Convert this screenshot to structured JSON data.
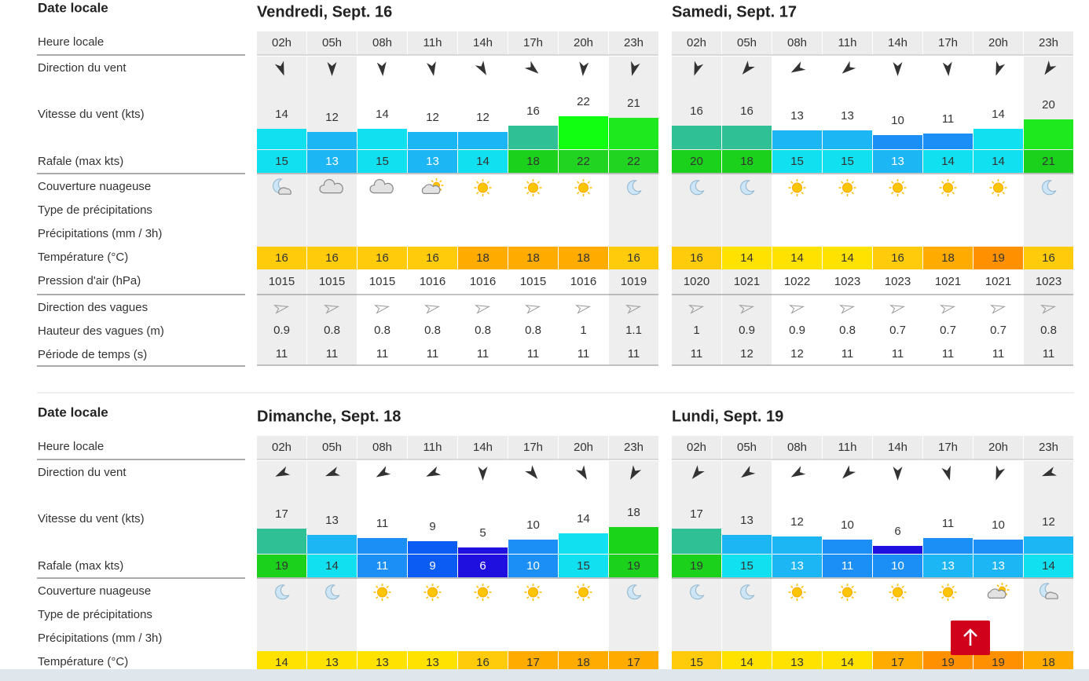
{
  "sections": [
    {
      "row_labels": [
        "Date locale",
        "Heure locale",
        "Direction du vent",
        "Vitesse du vent (kts)",
        "Rafale (max kts)",
        "Couverture nuageuse",
        "Type de précipitations",
        "Précipitations (mm / 3h)",
        "Température (°C)",
        "Pression d'air (hPa)",
        "Direction des vagues",
        "Hauteur des vagues (m)",
        "Période de temps (s)"
      ],
      "days": [
        {
          "title": "Vendredi, Sept. 16",
          "hours": [
            "02h",
            "05h",
            "08h",
            "11h",
            "14h",
            "17h",
            "20h",
            "23h"
          ],
          "wind_direction_deg": [
            160,
            180,
            175,
            170,
            150,
            130,
            185,
            195
          ],
          "wind_speed": [
            14,
            12,
            14,
            12,
            12,
            16,
            22,
            21
          ],
          "wind_colors": [
            "#10e0ef",
            "#1cb6f4",
            "#10e0ef",
            "#1cb6f4",
            "#1cb6f4",
            "#2fc096",
            "#11ff11",
            "#1ee81e"
          ],
          "gust": [
            15,
            13,
            15,
            13,
            14,
            18,
            22,
            22
          ],
          "gust_colors": [
            "#10e0ef",
            "#1cb6f4",
            "#10e0ef",
            "#1cb6f4",
            "#10e0ef",
            "#1cd11c",
            "#22d422",
            "#22d422"
          ],
          "cloud_icons": [
            "moon-cloud",
            "cloud",
            "cloud",
            "sun-cloud",
            "sun",
            "sun",
            "sun",
            "moon"
          ],
          "temperature": [
            16,
            16,
            16,
            16,
            18,
            18,
            18,
            16
          ],
          "temp_colors": [
            "#ffcb0a",
            "#ffcb0a",
            "#ffcb0a",
            "#ffcb0a",
            "#ffab00",
            "#ffab00",
            "#ffab00",
            "#ffcb0a"
          ],
          "pressure": [
            1015,
            1015,
            1015,
            1016,
            1016,
            1015,
            1016,
            1019
          ],
          "wave_height": [
            0.9,
            0.8,
            0.8,
            0.8,
            0.8,
            0.8,
            1,
            1.1
          ],
          "wave_period": [
            11,
            11,
            11,
            11,
            11,
            11,
            11,
            11
          ]
        },
        {
          "title": "Samedi, Sept. 17",
          "hours": [
            "02h",
            "05h",
            "08h",
            "11h",
            "14h",
            "17h",
            "20h",
            "23h"
          ],
          "wind_direction_deg": [
            200,
            220,
            240,
            230,
            180,
            175,
            200,
            215
          ],
          "wind_speed": [
            16,
            16,
            13,
            13,
            10,
            11,
            14,
            20
          ],
          "wind_colors": [
            "#2fc096",
            "#2fc096",
            "#1cb6f4",
            "#1cb6f4",
            "#1b8ff5",
            "#1b8ff5",
            "#10e0ef",
            "#1ee81e"
          ],
          "gust": [
            20,
            18,
            15,
            15,
            13,
            14,
            14,
            21
          ],
          "gust_colors": [
            "#1cd11c",
            "#1cd11c",
            "#10e0ef",
            "#10e0ef",
            "#1cb6f4",
            "#10e0ef",
            "#10e0ef",
            "#1cd11c"
          ],
          "cloud_icons": [
            "moon",
            "moon",
            "sun",
            "sun",
            "sun",
            "sun",
            "sun",
            "moon"
          ],
          "temperature": [
            16,
            14,
            14,
            14,
            16,
            18,
            19,
            16
          ],
          "temp_colors": [
            "#ffcb0a",
            "#ffe200",
            "#ffe200",
            "#ffe200",
            "#ffcb0a",
            "#ffab00",
            "#ff9100",
            "#ffcb0a"
          ],
          "pressure": [
            1020,
            1021,
            1022,
            1023,
            1023,
            1021,
            1021,
            1023
          ],
          "wave_height": [
            1,
            0.9,
            0.9,
            0.8,
            0.7,
            0.7,
            0.7,
            0.8
          ],
          "wave_period": [
            11,
            12,
            12,
            11,
            11,
            11,
            11,
            11
          ]
        }
      ]
    },
    {
      "row_labels": [
        "Date locale",
        "Heure locale",
        "Direction du vent",
        "Vitesse du vent (kts)",
        "Rafale (max kts)",
        "Couverture nuageuse",
        "Type de précipitations",
        "Précipitations (mm / 3h)",
        "Température (°C)"
      ],
      "days": [
        {
          "title": "Dimanche, Sept. 18",
          "hours": [
            "02h",
            "05h",
            "08h",
            "11h",
            "14h",
            "17h",
            "20h",
            "23h"
          ],
          "wind_direction_deg": [
            245,
            250,
            240,
            245,
            180,
            140,
            150,
            210
          ],
          "wind_speed": [
            17,
            13,
            11,
            9,
            5,
            10,
            14,
            18
          ],
          "wind_colors": [
            "#2fc096",
            "#1cb6f4",
            "#1b8ff5",
            "#0b5cf2",
            "#1f10e0",
            "#1b8ff5",
            "#10e0ef",
            "#1ad41a"
          ],
          "gust": [
            19,
            14,
            11,
            9,
            6,
            10,
            15,
            19
          ],
          "gust_colors": [
            "#1cd11c",
            "#10e0ef",
            "#1b8ff5",
            "#0b5cf2",
            "#1f10e0",
            "#1b8ff5",
            "#10e0ef",
            "#1cd11c"
          ],
          "cloud_icons": [
            "moon",
            "moon",
            "sun",
            "sun",
            "sun",
            "sun",
            "sun",
            "moon"
          ],
          "temperature": [
            14,
            13,
            13,
            13,
            16,
            17,
            18,
            17
          ],
          "temp_colors": [
            "#ffe200",
            "#ffe200",
            "#ffe200",
            "#ffe200",
            "#ffcb0a",
            "#ffab00",
            "#ffab00",
            "#ffab00"
          ]
        },
        {
          "title": "Lundi, Sept. 19",
          "hours": [
            "02h",
            "05h",
            "08h",
            "11h",
            "14h",
            "17h",
            "20h",
            "23h"
          ],
          "wind_direction_deg": [
            220,
            235,
            240,
            225,
            180,
            165,
            200,
            250
          ],
          "wind_speed": [
            17,
            13,
            12,
            10,
            6,
            11,
            10,
            12
          ],
          "wind_colors": [
            "#2fc096",
            "#1cb6f4",
            "#1cb6f4",
            "#1b8ff5",
            "#1f10e0",
            "#1b8ff5",
            "#1b8ff5",
            "#1cb6f4"
          ],
          "gust": [
            19,
            15,
            13,
            11,
            10,
            13,
            13,
            14
          ],
          "gust_colors": [
            "#1cd11c",
            "#10e0ef",
            "#1cb6f4",
            "#1b8ff5",
            "#1b8ff5",
            "#1cb6f4",
            "#1cb6f4",
            "#10e0ef"
          ],
          "cloud_icons": [
            "moon",
            "moon",
            "sun",
            "sun",
            "sun",
            "sun",
            "sun-cloud",
            "moon-cloud"
          ],
          "temperature": [
            15,
            14,
            13,
            14,
            17,
            19,
            19,
            18
          ],
          "temp_colors": [
            "#ffcb0a",
            "#ffe200",
            "#ffe200",
            "#ffe200",
            "#ffab00",
            "#ff9100",
            "#ff9100",
            "#ffab00"
          ]
        }
      ]
    }
  ]
}
